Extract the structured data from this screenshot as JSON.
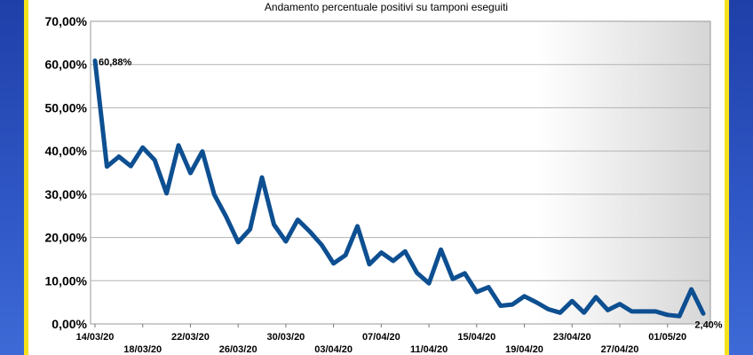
{
  "chart_data": {
    "type": "line",
    "title": "Andamento percentuale positivi su tamponi eseguiti",
    "xlabel": "",
    "ylabel": "",
    "ylim": [
      0,
      70
    ],
    "y_ticks": [
      "0,00%",
      "10,00%",
      "20,00%",
      "30,00%",
      "40,00%",
      "50,00%",
      "60,00%",
      "70,00%"
    ],
    "x_ticks": [
      "14/03/20",
      "18/03/20",
      "22/03/20",
      "26/03/20",
      "30/03/20",
      "03/04/20",
      "07/04/20",
      "11/04/20",
      "15/04/20",
      "19/04/20",
      "23/04/20",
      "27/04/20",
      "01/05/20"
    ],
    "grid": true,
    "series_color": "#0d4f91",
    "annotations": [
      {
        "x": "14/03/20",
        "label": "60,88%"
      },
      {
        "x": "04/05/20",
        "label": "2,40%"
      }
    ],
    "series": [
      {
        "x": [
          "14/03/20",
          "15/03/20",
          "16/03/20",
          "17/03/20",
          "18/03/20",
          "19/03/20",
          "20/03/20",
          "21/03/20",
          "22/03/20",
          "23/03/20",
          "24/03/20",
          "25/03/20",
          "26/03/20",
          "27/03/20",
          "28/03/20",
          "29/03/20",
          "30/03/20",
          "31/03/20",
          "01/04/20",
          "02/04/20",
          "03/04/20",
          "04/04/20",
          "05/04/20",
          "06/04/20",
          "07/04/20",
          "08/04/20",
          "09/04/20",
          "10/04/20",
          "11/04/20",
          "12/04/20",
          "13/04/20",
          "14/04/20",
          "15/04/20",
          "16/04/20",
          "17/04/20",
          "18/04/20",
          "19/04/20",
          "20/04/20",
          "21/04/20",
          "22/04/20",
          "23/04/20",
          "24/04/20",
          "25/04/20",
          "26/04/20",
          "27/04/20",
          "28/04/20",
          "29/04/20",
          "30/04/20",
          "01/05/20",
          "02/05/20",
          "03/05/20",
          "04/05/20"
        ],
        "values": [
          60.88,
          36.4,
          38.7,
          36.5,
          40.8,
          37.9,
          30.2,
          41.3,
          34.9,
          39.9,
          29.9,
          24.8,
          18.9,
          21.9,
          33.9,
          23.0,
          19.1,
          24.1,
          21.4,
          18.3,
          14.0,
          15.9,
          22.6,
          13.8,
          16.5,
          14.6,
          16.8,
          11.8,
          9.4,
          17.2,
          10.4,
          11.7,
          7.4,
          8.5,
          4.2,
          4.5,
          6.4,
          5.0,
          3.4,
          2.6,
          5.3,
          2.6,
          6.2,
          3.2,
          4.6,
          2.9,
          2.9,
          2.9,
          2.1,
          1.8,
          8.0,
          2.4
        ]
      }
    ]
  }
}
